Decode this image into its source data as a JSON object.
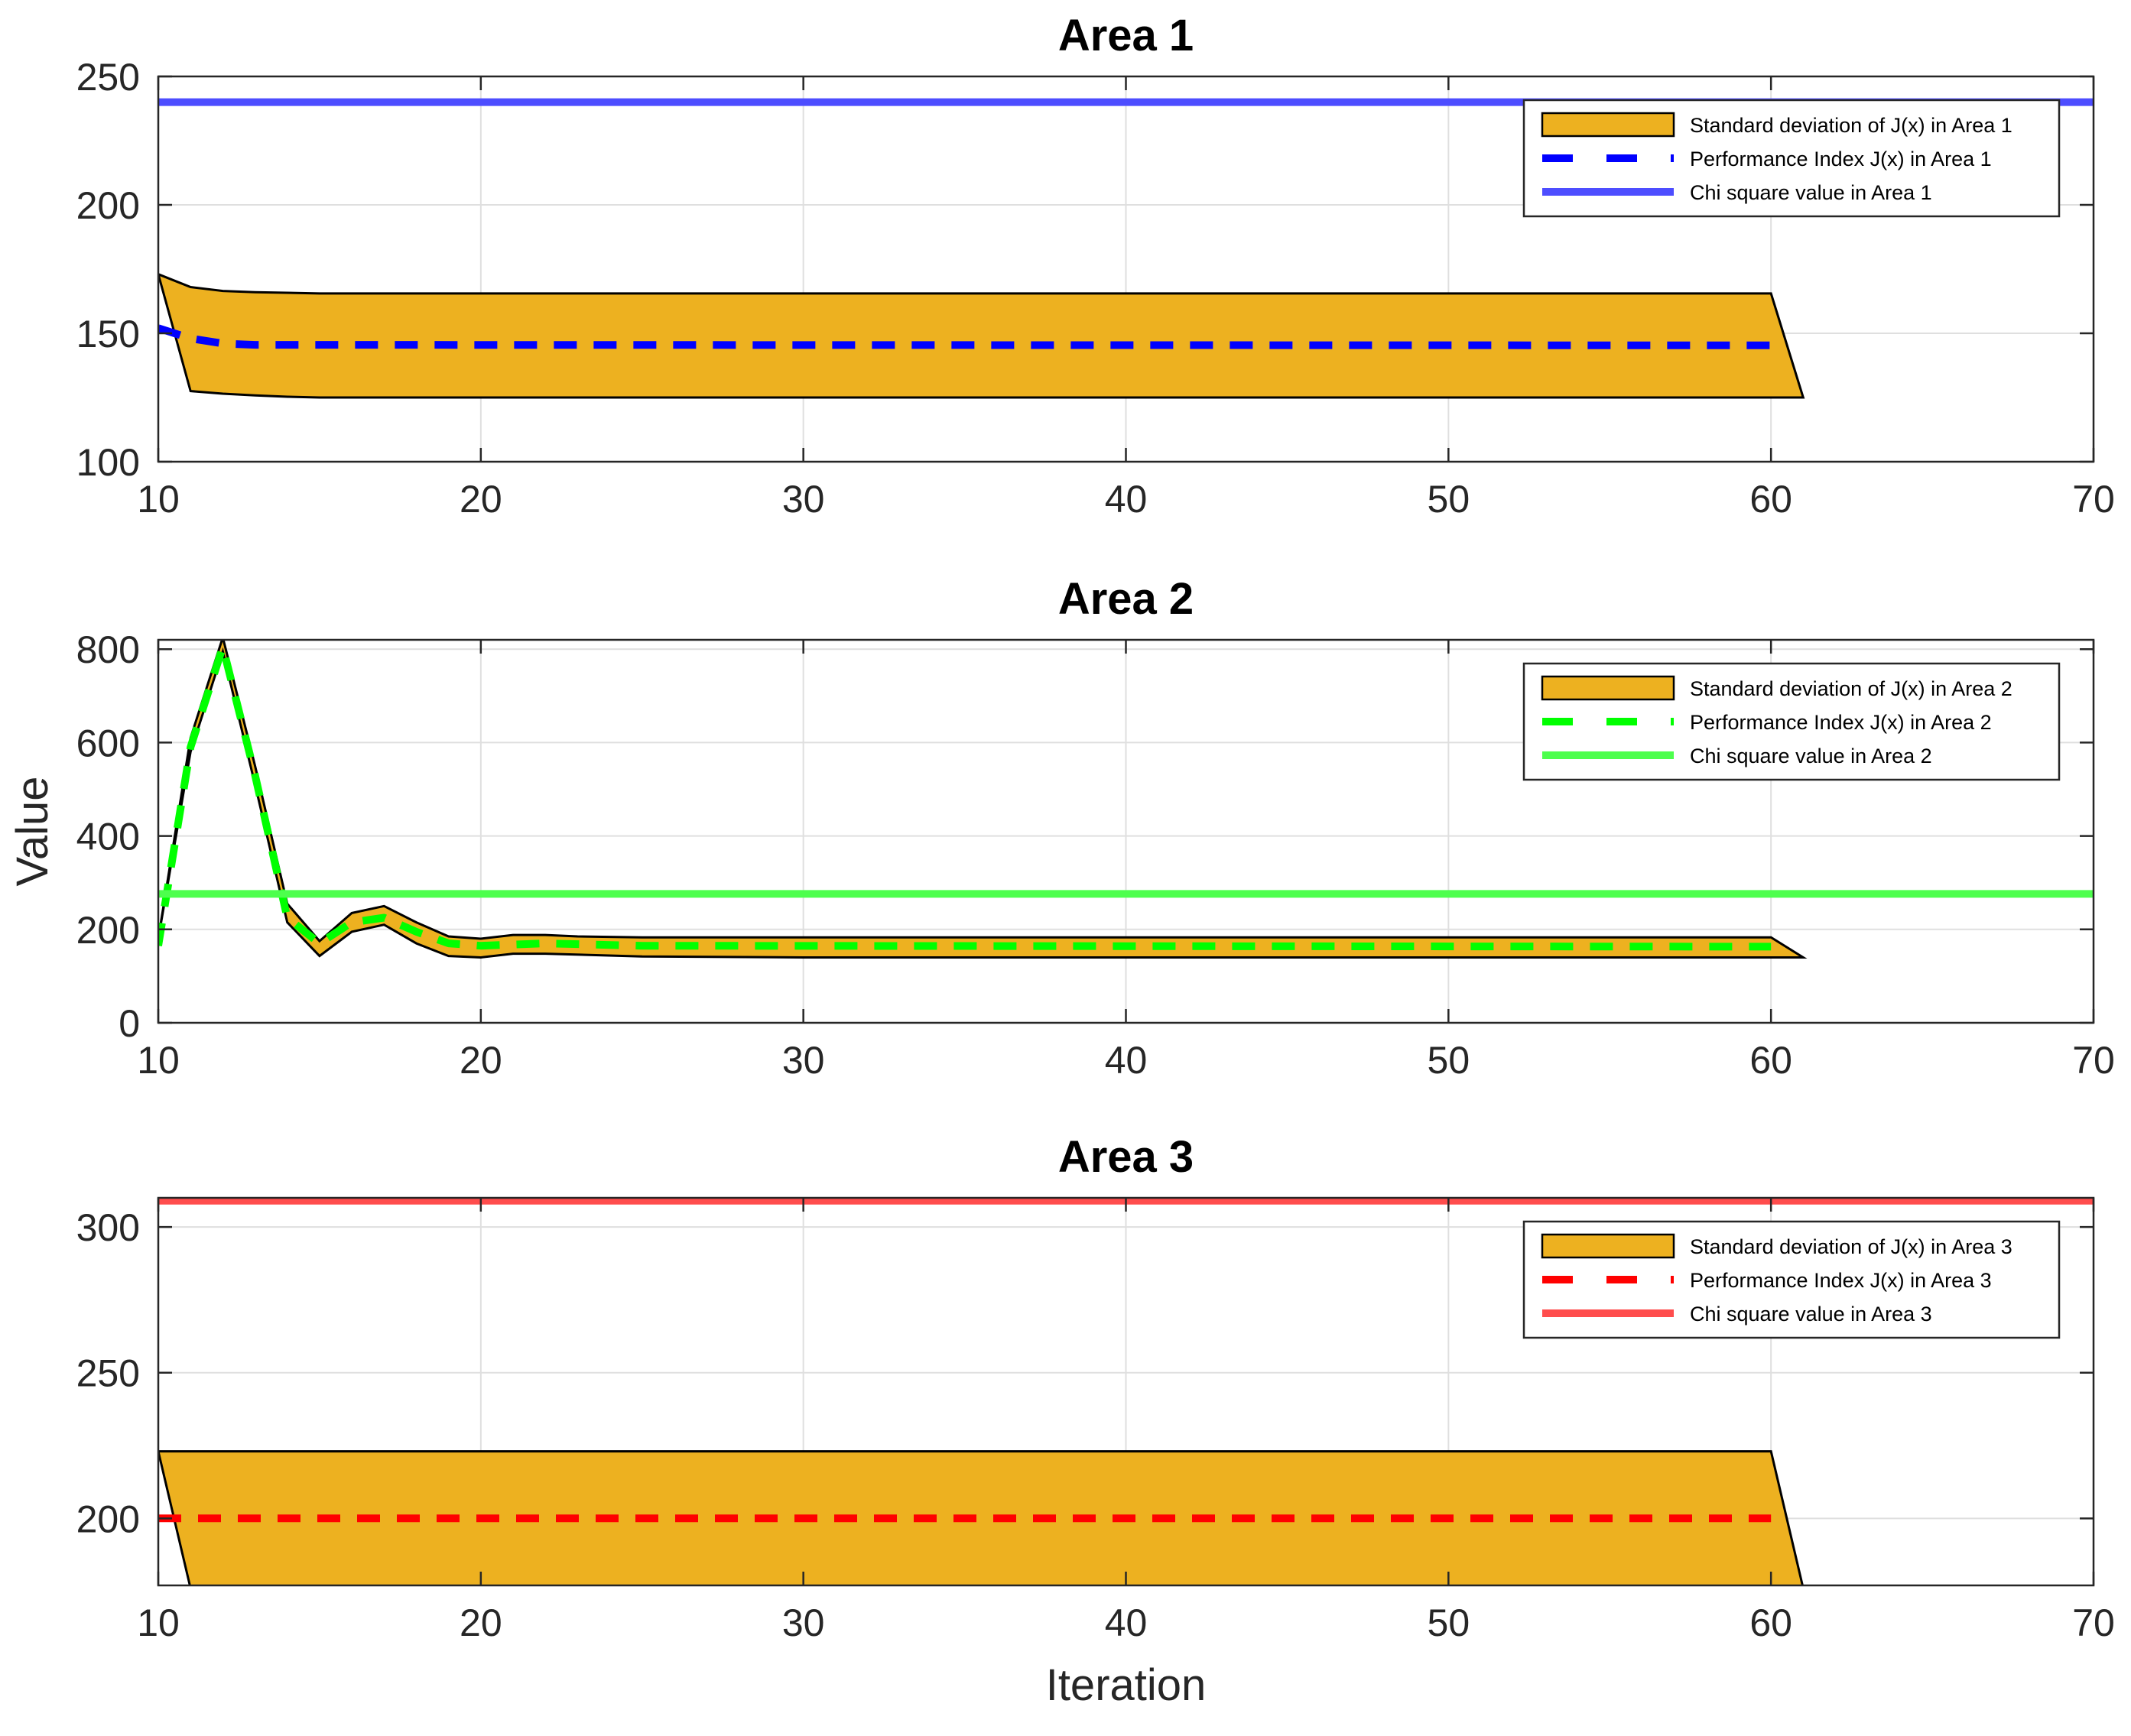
{
  "chart_data": [
    {
      "type": "line",
      "title": "Area 1",
      "xlabel": "",
      "ylabel": "",
      "xlim": [
        10,
        70
      ],
      "ylim": [
        100,
        250
      ],
      "xticks": [
        10,
        20,
        30,
        40,
        50,
        60,
        70
      ],
      "yticks": [
        100,
        150,
        200,
        250
      ],
      "grid": true,
      "legend_position": "top-right",
      "band": {
        "name": "Standard deviation of J(x) in Area 1",
        "color": "#EDB120",
        "upper": [
          [
            10,
            173
          ],
          [
            11,
            168
          ],
          [
            12,
            166.5
          ],
          [
            13,
            166
          ],
          [
            15,
            165.5
          ],
          [
            60,
            165.5
          ]
        ],
        "lower": [
          [
            61,
            125
          ],
          [
            15,
            125
          ],
          [
            14,
            125.3
          ],
          [
            13,
            125.8
          ],
          [
            12,
            126.5
          ],
          [
            11,
            127.5
          ]
        ]
      },
      "series": [
        {
          "name": "Performance Index J(x) in Area 1",
          "style": "dashed",
          "color": "#0000FF",
          "points": [
            [
              10,
              152
            ],
            [
              11,
              148
            ],
            [
              12,
              146
            ],
            [
              13,
              145.5
            ],
            [
              60,
              145.3
            ]
          ]
        },
        {
          "name": "Chi square value in Area 1",
          "style": "solid",
          "color": "#4D4DFF",
          "points": [
            [
              10,
              240
            ],
            [
              70,
              240
            ]
          ]
        }
      ]
    },
    {
      "type": "line",
      "title": "Area 2",
      "xlabel": "",
      "ylabel": "Value",
      "xlim": [
        10,
        70
      ],
      "ylim": [
        0,
        820
      ],
      "xticks": [
        10,
        20,
        30,
        40,
        50,
        60,
        70
      ],
      "yticks": [
        0,
        200,
        400,
        600,
        800
      ],
      "grid": true,
      "legend_position": "top-right",
      "band": {
        "name": "Standard deviation of J(x) in Area 2",
        "color": "#EDB120",
        "upper": [
          [
            10,
            180
          ],
          [
            11,
            610
          ],
          [
            12,
            825
          ],
          [
            13,
            550
          ],
          [
            14,
            255
          ],
          [
            15,
            175
          ],
          [
            16,
            235
          ],
          [
            17,
            250
          ],
          [
            18,
            215
          ],
          [
            19,
            185
          ],
          [
            20,
            180
          ],
          [
            21,
            188
          ],
          [
            22,
            188
          ],
          [
            23,
            185
          ],
          [
            25,
            183
          ],
          [
            60,
            183
          ]
        ],
        "lower": [
          [
            61,
            140
          ],
          [
            30,
            140
          ],
          [
            25,
            142
          ],
          [
            22,
            148
          ],
          [
            21,
            148
          ],
          [
            20,
            140
          ],
          [
            19,
            143
          ],
          [
            18,
            170
          ],
          [
            17,
            210
          ],
          [
            16,
            195
          ],
          [
            15,
            143
          ],
          [
            14,
            215
          ],
          [
            13,
            510
          ],
          [
            12,
            795
          ],
          [
            11,
            580
          ]
        ]
      },
      "series": [
        {
          "name": "Performance Index J(x) in Area 2",
          "style": "dashed",
          "color": "#00FF00",
          "points": [
            [
              10,
              165
            ],
            [
              11,
              590
            ],
            [
              12,
              805
            ],
            [
              13,
              530
            ],
            [
              14,
              225
            ],
            [
              15,
              170
            ],
            [
              16,
              215
            ],
            [
              17,
              225
            ],
            [
              18,
              195
            ],
            [
              19,
              170
            ],
            [
              20,
              165
            ],
            [
              22,
              170
            ],
            [
              25,
              165
            ],
            [
              60,
              163
            ]
          ]
        },
        {
          "name": "Chi square value in Area 2",
          "style": "solid",
          "color": "#4DFF4D",
          "points": [
            [
              10,
              276
            ],
            [
              70,
              276
            ]
          ]
        }
      ]
    },
    {
      "type": "line",
      "title": "Area 3",
      "xlabel": "Iteration",
      "ylabel": "",
      "xlim": [
        10,
        70
      ],
      "ylim": [
        177,
        310
      ],
      "xticks": [
        10,
        20,
        30,
        40,
        50,
        60,
        70
      ],
      "yticks": [
        200,
        250,
        300
      ],
      "grid": true,
      "legend_position": "top-right",
      "band": {
        "name": "Standard deviation of J(x) in Area 3",
        "color": "#EDB120",
        "upper": [
          [
            10,
            223
          ],
          [
            60,
            223
          ]
        ],
        "lower": [
          [
            61,
            176
          ],
          [
            11,
            176
          ]
        ]
      },
      "series": [
        {
          "name": "Performance Index J(x) in Area 3",
          "style": "dashed",
          "color": "#FF0000",
          "points": [
            [
              10,
              200
            ],
            [
              60,
              200
            ]
          ]
        },
        {
          "name": "Chi square value in Area 3",
          "style": "solid",
          "color": "#FF4D4D",
          "points": [
            [
              10,
              309
            ],
            [
              70,
              309
            ]
          ]
        }
      ]
    }
  ]
}
